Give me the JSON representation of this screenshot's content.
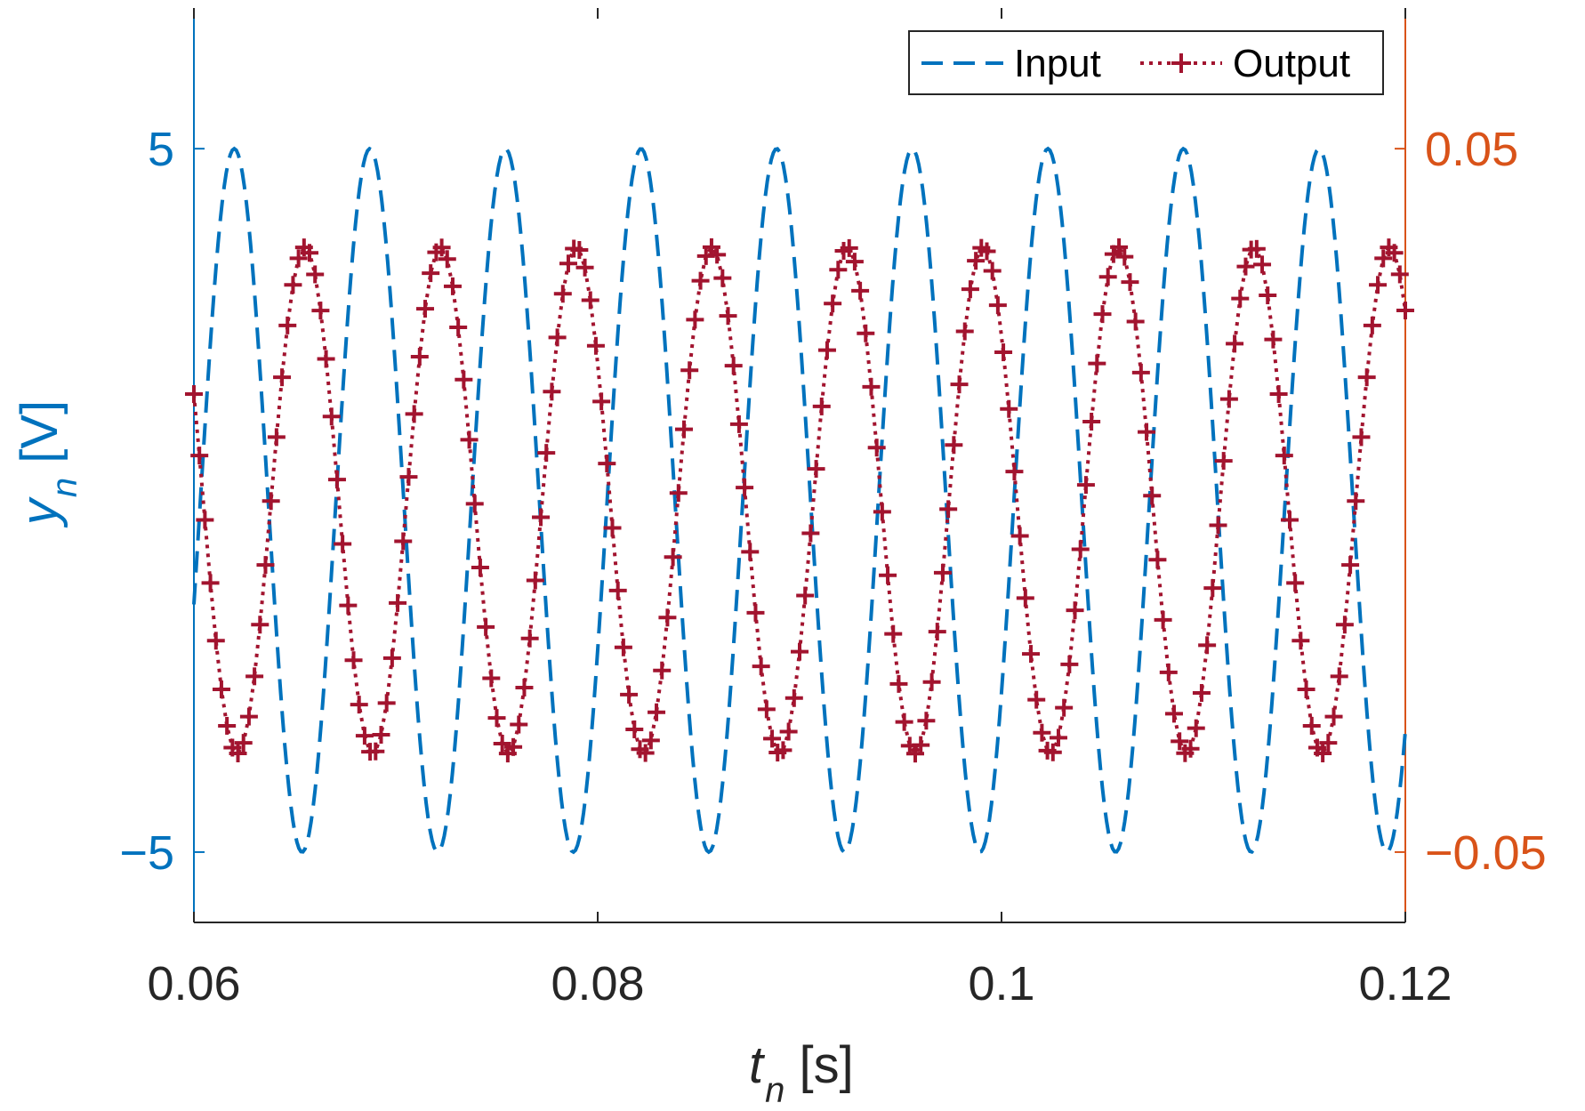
{
  "chart_data": {
    "type": "line",
    "title": "",
    "xlabel": {
      "var": "t",
      "sub": "n",
      "unit": " [s]"
    },
    "ylabel": {
      "var": "y",
      "sub": "n",
      "unit": " [V]"
    },
    "xlim": [
      0.06,
      0.12
    ],
    "ylim_left": [
      -6,
      7
    ],
    "ylim_right": [
      -0.06,
      0.07
    ],
    "x_ticks": [
      0.06,
      0.08,
      0.1,
      0.12
    ],
    "x_tick_labels": [
      "0.06",
      "0.08",
      "0.1",
      "0.12"
    ],
    "y_left_ticks": [
      5,
      -5
    ],
    "y_left_tick_labels": [
      "5",
      "−5"
    ],
    "y_right_ticks": [
      0.05,
      -0.05
    ],
    "y_right_tick_labels": [
      "0.05",
      "−0.05"
    ],
    "legend_position": "top-right",
    "series": [
      {
        "name": "Input",
        "axis": "left",
        "style": "dashed",
        "color": "#0072BD",
        "amplitude": 5,
        "frequency_hz": 148.9,
        "phase_reference_peak_t": 0.062,
        "sample_count": 600
      },
      {
        "name": "Output",
        "axis": "right",
        "style": "dotted-plus",
        "color": "#A2142F",
        "amplitude": 0.036,
        "offset": 0.0,
        "frequency_hz": 148.9,
        "phase_reference_peak_t": 0.0655,
        "sample_count": 220
      }
    ],
    "left_axis_color": "#0072BD",
    "right_axis_color": "#D95319",
    "text_color": "#262626"
  },
  "legend": {
    "input_label": "Input",
    "output_label": "Output"
  }
}
